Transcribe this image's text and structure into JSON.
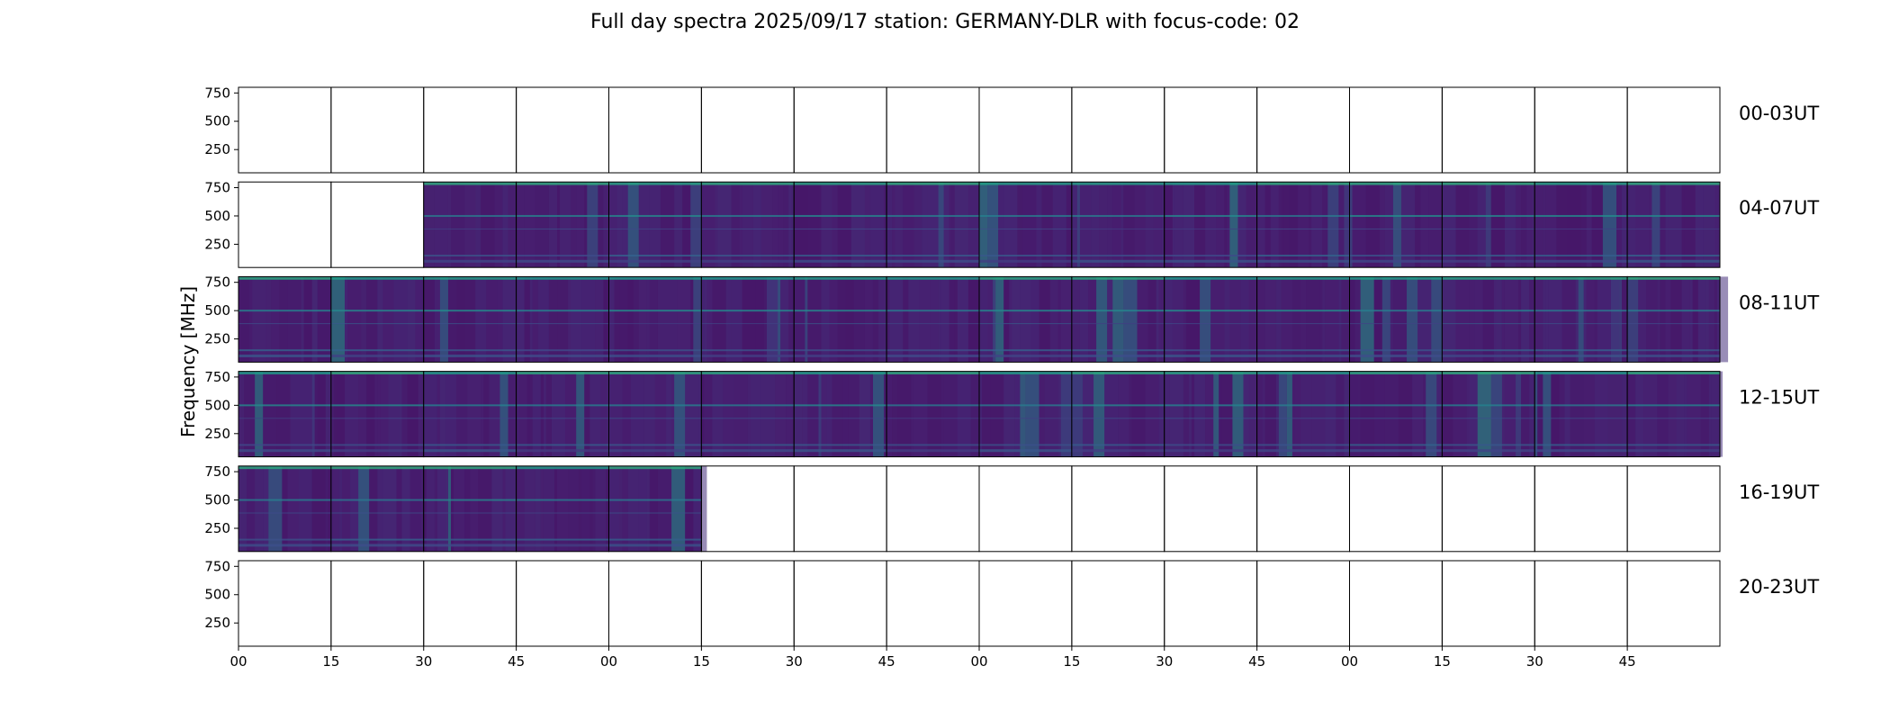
{
  "chart_data": {
    "type": "heatmap",
    "title": "Full day spectra 2025/09/17 station: GERMANY-DLR with focus-code: 02",
    "ylabel": "Frequency [MHz]",
    "xlabel": "",
    "ylim": [
      45,
      800
    ],
    "y_ticks": [
      "750",
      "500",
      "250"
    ],
    "y_tick_values": [
      750,
      500,
      250
    ],
    "x_ticks": [
      "00",
      "15",
      "30",
      "45",
      "00",
      "15",
      "30",
      "45",
      "00",
      "15",
      "30",
      "45",
      "00",
      "15",
      "30",
      "45"
    ],
    "x_tick_positions_minutes": [
      0,
      15,
      30,
      45,
      60,
      75,
      90,
      105,
      120,
      135,
      150,
      165,
      180,
      195,
      210,
      225
    ],
    "panels_per_row": 16,
    "panel_duration_minutes": 15,
    "colormap": "viridis",
    "rows": [
      {
        "label": "00-03UT",
        "has_data": [
          false,
          false,
          false,
          false,
          false,
          false,
          false,
          false,
          false,
          false,
          false,
          false,
          false,
          false,
          false,
          false
        ]
      },
      {
        "label": "04-07UT",
        "has_data": [
          false,
          false,
          true,
          true,
          true,
          true,
          true,
          true,
          true,
          true,
          true,
          true,
          true,
          true,
          true,
          true
        ]
      },
      {
        "label": "08-11UT",
        "has_data": [
          true,
          true,
          true,
          true,
          true,
          true,
          true,
          true,
          true,
          true,
          true,
          true,
          true,
          true,
          true,
          true
        ]
      },
      {
        "label": "12-15UT",
        "has_data": [
          true,
          true,
          true,
          true,
          true,
          true,
          true,
          true,
          true,
          true,
          true,
          true,
          true,
          true,
          true,
          true
        ]
      },
      {
        "label": "16-19UT",
        "has_data": [
          true,
          true,
          true,
          true,
          true,
          false,
          false,
          false,
          false,
          false,
          false,
          false,
          false,
          false,
          false,
          false
        ]
      },
      {
        "label": "20-23UT",
        "has_data": [
          false,
          false,
          false,
          false,
          false,
          false,
          false,
          false,
          false,
          false,
          false,
          false,
          false,
          false,
          false,
          false
        ]
      }
    ]
  }
}
